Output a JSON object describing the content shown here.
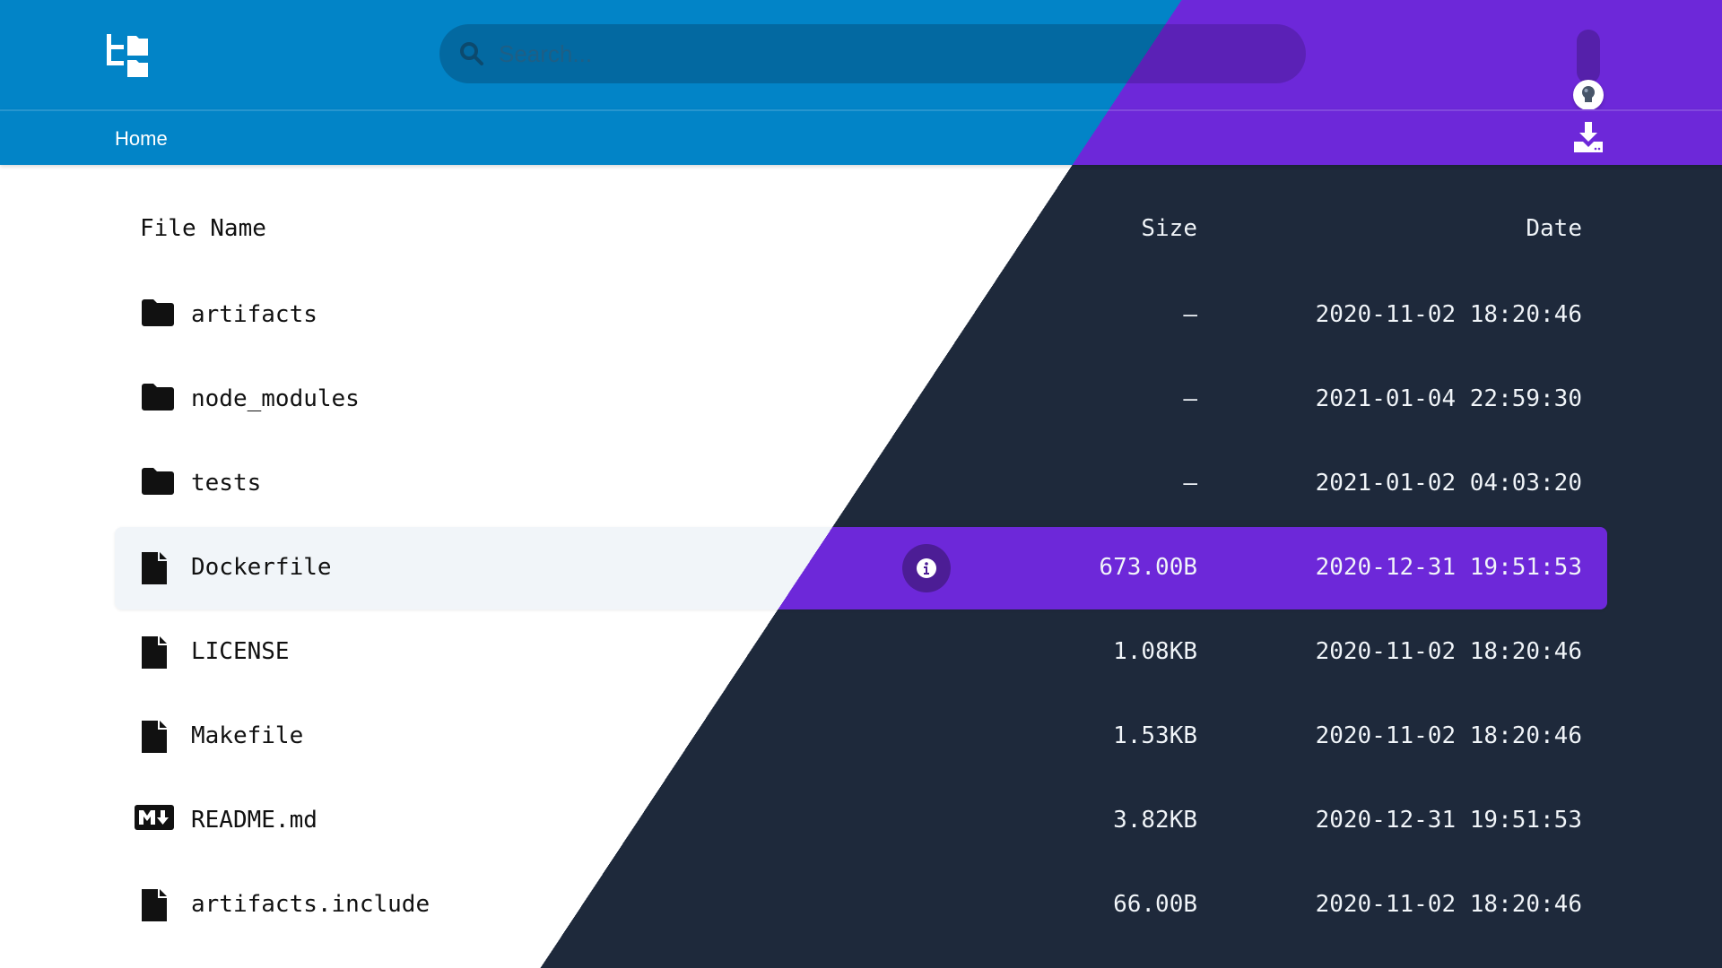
{
  "search": {
    "placeholder": "Search..."
  },
  "nav": {
    "breadcrumb": "Home"
  },
  "table": {
    "headers": {
      "name": "File Name",
      "size": "Size",
      "date": "Date"
    },
    "rows": [
      {
        "name": "artifacts",
        "type": "folder",
        "size": "—",
        "date": "2020-11-02 18:20:46"
      },
      {
        "name": "node_modules",
        "type": "folder",
        "size": "—",
        "date": "2021-01-04 22:59:30"
      },
      {
        "name": "tests",
        "type": "folder",
        "size": "—",
        "date": "2021-01-02 04:03:20"
      },
      {
        "name": "Dockerfile",
        "type": "file",
        "size": "673.00B",
        "date": "2020-12-31 19:51:53",
        "selected": true
      },
      {
        "name": "LICENSE",
        "type": "file",
        "size": "1.08KB",
        "date": "2020-11-02 18:20:46"
      },
      {
        "name": "Makefile",
        "type": "file",
        "size": "1.53KB",
        "date": "2020-11-02 18:20:46"
      },
      {
        "name": "README.md",
        "type": "markdown",
        "size": "3.82KB",
        "date": "2020-12-31 19:51:53"
      },
      {
        "name": "artifacts.include",
        "type": "file",
        "size": "66.00B",
        "date": "2020-11-02 18:20:46"
      }
    ]
  },
  "theme": {
    "light_accent": "#0284c7",
    "dark_accent": "#6d28d9",
    "dark_bg": "#1e293b"
  },
  "icons": {
    "logo": "folder-tree-icon",
    "search": "search-icon",
    "theme_toggle": "lightbulb-icon",
    "download": "download-icon",
    "info": "info-icon"
  }
}
